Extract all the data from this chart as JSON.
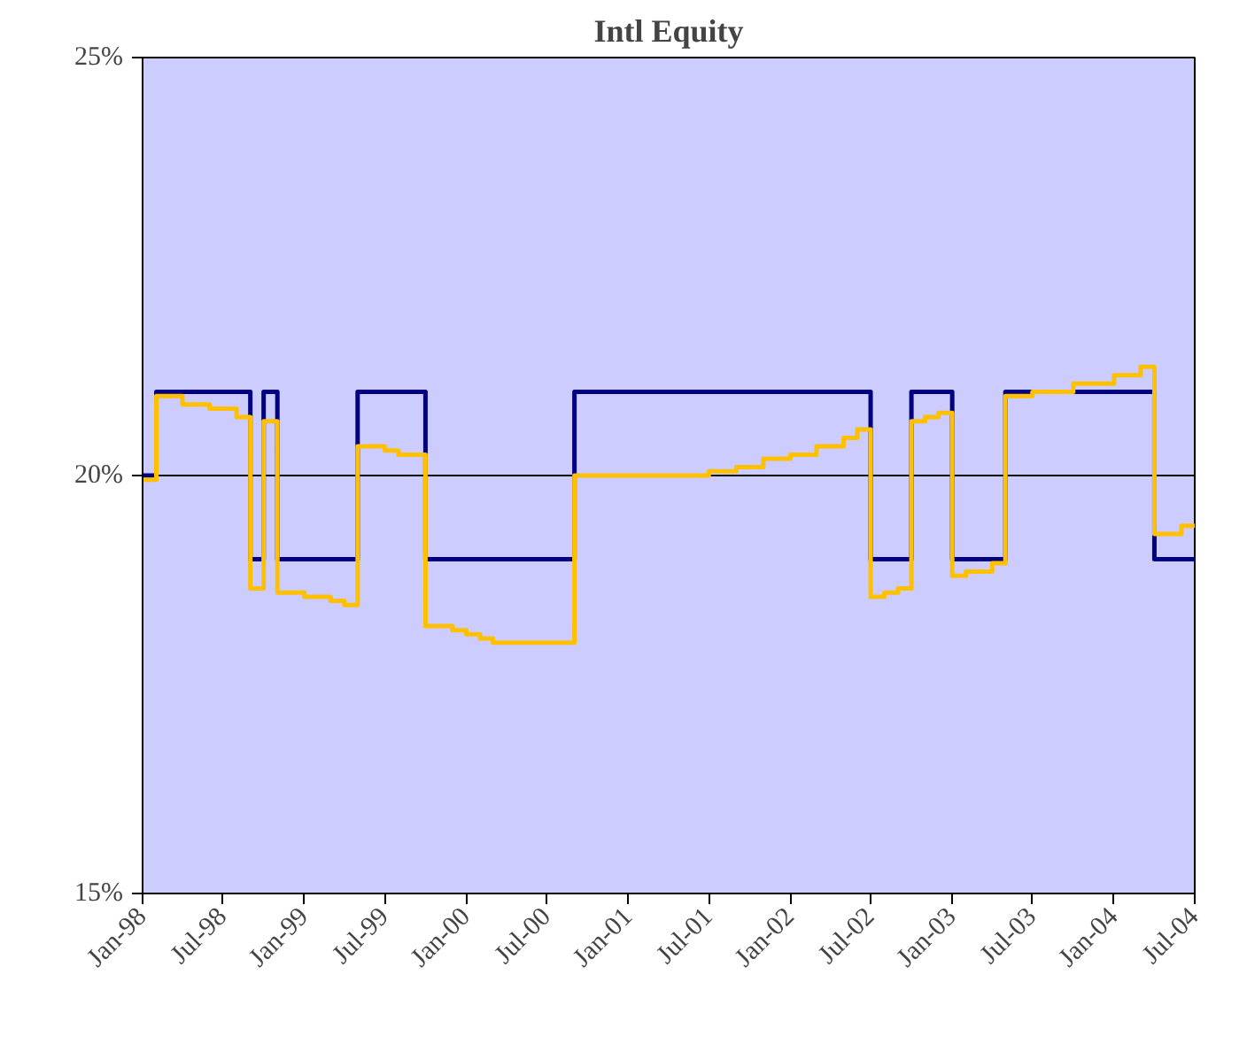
{
  "chart_data": {
    "type": "step",
    "title": "Intl Equity",
    "xlim": [
      "1998-01",
      "2004-07"
    ],
    "xticks": [
      {
        "value": "1998-01",
        "label": "Jan-98"
      },
      {
        "value": "1998-07",
        "label": "Jul-98"
      },
      {
        "value": "1999-01",
        "label": "Jan-99"
      },
      {
        "value": "1999-07",
        "label": "Jul-99"
      },
      {
        "value": "2000-01",
        "label": "Jan-00"
      },
      {
        "value": "2000-07",
        "label": "Jul-00"
      },
      {
        "value": "2001-01",
        "label": "Jan-01"
      },
      {
        "value": "2001-07",
        "label": "Jul-01"
      },
      {
        "value": "2002-01",
        "label": "Jan-02"
      },
      {
        "value": "2002-07",
        "label": "Jul-02"
      },
      {
        "value": "2003-01",
        "label": "Jan-03"
      },
      {
        "value": "2003-07",
        "label": "Jul-03"
      },
      {
        "value": "2004-01",
        "label": "Jan-04"
      },
      {
        "value": "2004-07",
        "label": "Jul-04"
      }
    ],
    "ylim": [
      15,
      25
    ],
    "yticks": [
      {
        "value": 15,
        "label": "15%"
      },
      {
        "value": 20,
        "label": "20%"
      },
      {
        "value": 25,
        "label": "25%"
      }
    ],
    "grid": "y",
    "series": [
      {
        "color": "#000080",
        "x": [
          "1998-01",
          "1998-02",
          "1998-09",
          "1998-10",
          "1998-11",
          "1999-05",
          "1999-10",
          "2000-09",
          "2002-07",
          "2002-10",
          "2003-01",
          "2003-05",
          "2004-04",
          "2004-07"
        ],
        "values": [
          20,
          21,
          19,
          21,
          19,
          21,
          19,
          21,
          19,
          21,
          19,
          21,
          19,
          19
        ]
      },
      {
        "color": "#ffc000",
        "x": [
          "1998-01",
          "1998-02",
          "1998-04",
          "1998-06",
          "1998-08",
          "1998-09",
          "1998-10",
          "1998-11",
          "1999-01",
          "1999-03",
          "1999-04",
          "1999-05",
          "1999-07",
          "1999-08",
          "1999-10",
          "1999-12",
          "2000-01",
          "2000-02",
          "2000-03",
          "2000-09",
          "2001-07",
          "2001-09",
          "2001-11",
          "2002-01",
          "2002-03",
          "2002-05",
          "2002-06",
          "2002-07",
          "2002-08",
          "2002-09",
          "2002-10",
          "2002-11",
          "2002-12",
          "2003-01",
          "2003-02",
          "2003-04",
          "2003-05",
          "2003-07",
          "2003-10",
          "2004-01",
          "2004-03",
          "2004-04",
          "2004-06",
          "2004-07"
        ],
        "values": [
          19.95,
          20.95,
          20.85,
          20.8,
          20.7,
          18.65,
          20.65,
          18.6,
          18.55,
          18.5,
          18.45,
          20.35,
          20.3,
          20.25,
          18.2,
          18.15,
          18.1,
          18.05,
          18.0,
          20.0,
          20.05,
          20.1,
          20.2,
          20.25,
          20.35,
          20.45,
          20.55,
          18.55,
          18.6,
          18.65,
          20.65,
          20.7,
          20.75,
          18.8,
          18.85,
          18.95,
          20.95,
          21.0,
          21.1,
          21.2,
          21.3,
          19.3,
          19.4,
          19.4
        ]
      }
    ]
  }
}
